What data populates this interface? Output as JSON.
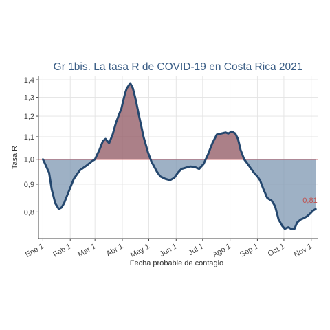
{
  "chart_data": {
    "type": "area",
    "title": "Gr 1bis. La tasa R de COVID-19 en Costa Rica 2021",
    "xlabel": "Fecha probable de contagio",
    "ylabel": "Tasa R",
    "x_ticks": [
      "Ene 1",
      "Feb 1",
      "Mar 1",
      "Abr 1",
      "May 1",
      "Jun 1",
      "Jul 1",
      "Ago 1",
      "Sep 1",
      "Oct 1",
      "Nov 1"
    ],
    "y_ticks": [
      "0,8",
      "0,9",
      "1,0",
      "1,1",
      "1,2",
      "1,3",
      "1,4"
    ],
    "y_tick_values": [
      0.8,
      0.9,
      1.0,
      1.1,
      1.2,
      1.3,
      1.4
    ],
    "ylim": [
      0.715,
      1.425
    ],
    "xlim": [
      "2020-12-27",
      "2021-11-09"
    ],
    "y_scale": "log",
    "grid": true,
    "reference_line": {
      "y": 1.0,
      "color": "#c8474b"
    },
    "colors": {
      "line": "#24476e",
      "above": "#8f5560",
      "below": "#7d97b1",
      "title": "#3b5e86",
      "last_label": "#c0504d"
    },
    "last_value_label": "0,81",
    "series": [
      {
        "x": [
          "2021-01-01",
          "2021-01-08",
          "2021-01-11",
          "2021-01-15",
          "2021-01-19",
          "2021-01-22",
          "2021-01-25",
          "2021-01-30",
          "2021-02-05",
          "2021-02-12",
          "2021-02-20",
          "2021-02-25",
          "2021-03-01",
          "2021-03-06",
          "2021-03-10",
          "2021-03-13",
          "2021-03-17",
          "2021-03-21",
          "2021-03-25",
          "2021-03-31",
          "2021-04-04",
          "2021-04-06",
          "2021-04-10",
          "2021-04-13",
          "2021-04-16",
          "2021-04-20",
          "2021-04-25",
          "2021-04-30",
          "2021-05-04",
          "2021-05-10",
          "2021-05-14",
          "2021-05-20",
          "2021-05-25",
          "2021-05-30",
          "2021-06-03",
          "2021-06-07",
          "2021-06-12",
          "2021-06-17",
          "2021-06-22",
          "2021-06-27",
          "2021-07-02",
          "2021-07-07",
          "2021-07-12",
          "2021-07-17",
          "2021-07-22",
          "2021-07-27",
          "2021-07-30",
          "2021-08-03",
          "2021-08-07",
          "2021-08-10",
          "2021-08-13",
          "2021-08-17",
          "2021-08-21",
          "2021-08-25",
          "2021-08-28",
          "2021-09-01",
          "2021-09-04",
          "2021-09-08",
          "2021-09-12",
          "2021-09-14",
          "2021-09-17",
          "2021-09-21",
          "2021-09-25",
          "2021-09-29",
          "2021-10-02",
          "2021-10-06",
          "2021-10-09",
          "2021-10-13",
          "2021-10-16",
          "2021-10-20",
          "2021-10-24",
          "2021-10-27",
          "2021-10-31",
          "2021-11-03",
          "2021-11-06"
        ],
        "y": [
          1.0,
          0.945,
          0.88,
          0.83,
          0.81,
          0.815,
          0.83,
          0.87,
          0.92,
          0.955,
          0.975,
          0.99,
          1.0,
          1.04,
          1.08,
          1.09,
          1.07,
          1.11,
          1.17,
          1.24,
          1.32,
          1.35,
          1.38,
          1.35,
          1.29,
          1.2,
          1.1,
          1.03,
          0.99,
          0.95,
          0.93,
          0.92,
          0.915,
          0.925,
          0.945,
          0.96,
          0.965,
          0.97,
          0.968,
          0.96,
          0.98,
          1.02,
          1.07,
          1.11,
          1.115,
          1.12,
          1.115,
          1.125,
          1.115,
          1.09,
          1.04,
          1.0,
          0.98,
          0.96,
          0.945,
          0.93,
          0.915,
          0.88,
          0.85,
          0.845,
          0.84,
          0.82,
          0.775,
          0.755,
          0.745,
          0.75,
          0.745,
          0.745,
          0.765,
          0.775,
          0.78,
          0.785,
          0.795,
          0.805,
          0.81
        ]
      }
    ]
  }
}
